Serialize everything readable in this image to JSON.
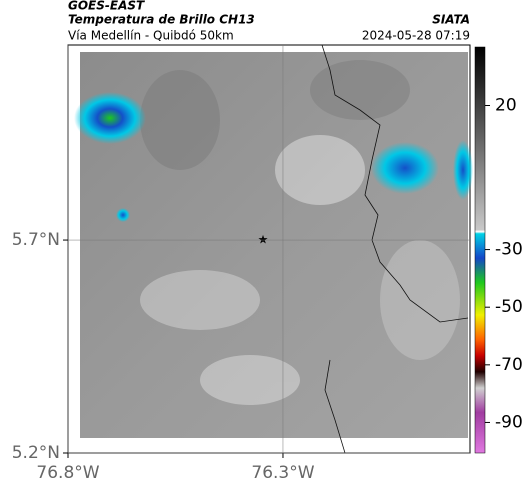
{
  "header": {
    "source": "GOES-EAST",
    "title": "Temperatura de Brillo CH13",
    "route": "Vía Medellín - Quibdó 50km",
    "org": "SIATA",
    "datetime": "2024-05-28 07:19"
  },
  "map": {
    "lonlim": [
      -76.8,
      -75.865
    ],
    "latlim": [
      5.2,
      6.158
    ],
    "lonticks": [
      {
        "value": -76.8,
        "label": "76.8°W"
      },
      {
        "value": -76.3,
        "label": "76.3°W"
      }
    ],
    "latticks": [
      {
        "value": 5.2,
        "label": "5.2°N"
      },
      {
        "value": 5.7,
        "label": "5.7°N"
      }
    ],
    "grid": true
  },
  "colorbar": {
    "clim": [
      -100.6,
      40.3
    ],
    "ticks": [
      20,
      -30,
      -50,
      -70,
      -90
    ]
  }
}
